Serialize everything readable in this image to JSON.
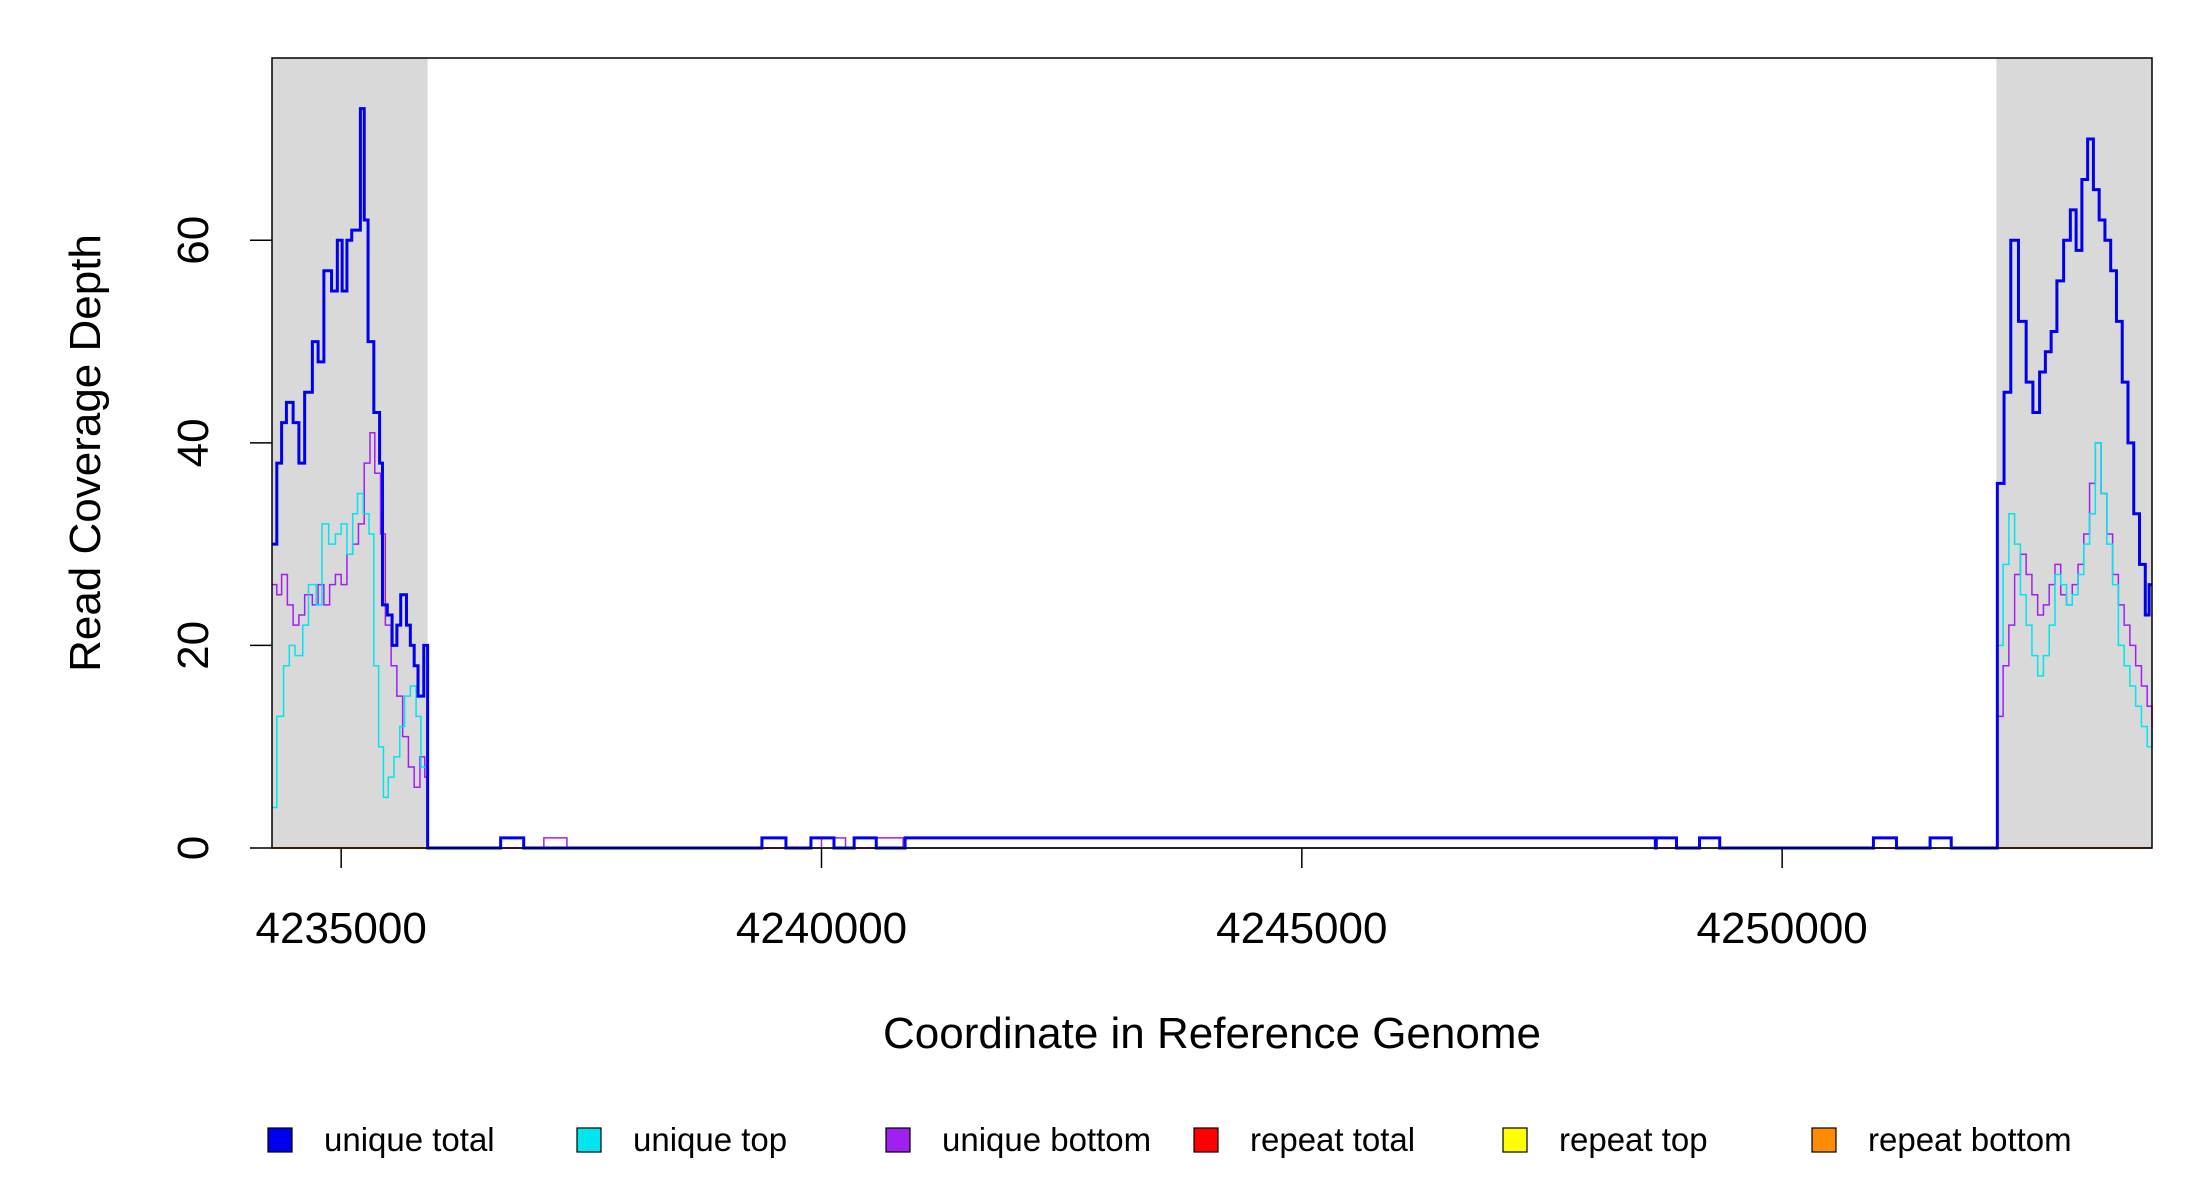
{
  "chart_data": {
    "type": "line",
    "xlabel": "Coordinate in Reference Genome",
    "ylabel": "Read Coverage Depth",
    "xlim": [
      4234280,
      4253850
    ],
    "ylim": [
      0,
      78
    ],
    "x_ticks": [
      4235000,
      4240000,
      4245000,
      4250000
    ],
    "x_tick_labels": [
      "4235000",
      "4240000",
      "4245000",
      "4250000"
    ],
    "y_ticks": [
      0,
      20,
      40,
      60
    ],
    "y_tick_labels": [
      "0",
      "20",
      "40",
      "60"
    ],
    "grid": false,
    "legend_position": "bottom",
    "shaded_regions": [
      {
        "x0": 4234280,
        "x1": 4235900,
        "color": "#d9d9d9"
      },
      {
        "x0": 4252230,
        "x1": 4253850,
        "color": "#d9d9d9"
      }
    ],
    "series": [
      {
        "name": "unique total",
        "color": "#0000ee",
        "width": 3,
        "x": [
          4234280,
          4234330,
          4234380,
          4234430,
          4234500,
          4234560,
          4234620,
          4234700,
          4234760,
          4234820,
          4234900,
          4234960,
          4235010,
          4235060,
          4235110,
          4235160,
          4235200,
          4235240,
          4235280,
          4235340,
          4235400,
          4235430,
          4235480,
          4235530,
          4235580,
          4235620,
          4235680,
          4235720,
          4235760,
          4235800,
          4235860,
          4235900,
          4236650,
          4236660,
          4236880,
          4236900,
          4239370,
          4239380,
          4239620,
          4239630,
          4239880,
          4239890,
          4240120,
          4240130,
          4240330,
          4240340,
          4240560,
          4240570,
          4240860,
          4240870,
          4248680,
          4248690,
          4248880,
          4248900,
          4249130,
          4249140,
          4249330,
          4249350,
          4250940,
          4250950,
          4251180,
          4251190,
          4251530,
          4251540,
          4251750,
          4251760,
          4252230,
          4252240,
          4252310,
          4252380,
          4252460,
          4252540,
          4252610,
          4252680,
          4252740,
          4252800,
          4252860,
          4252930,
          4253000,
          4253060,
          4253120,
          4253180,
          4253240,
          4253300,
          4253360,
          4253420,
          4253480,
          4253540,
          4253600,
          4253660,
          4253720,
          4253780,
          4253820,
          4253850
        ],
        "y": [
          30,
          38,
          42,
          44,
          42,
          38,
          45,
          50,
          48,
          57,
          55,
          60,
          55,
          60,
          61,
          61,
          73,
          62,
          50,
          43,
          38,
          24,
          23,
          20,
          22,
          25,
          22,
          20,
          18,
          15,
          20,
          0,
          0,
          1,
          1,
          0,
          0,
          1,
          1,
          0,
          0,
          1,
          1,
          0,
          0,
          1,
          1,
          0,
          0,
          1,
          0,
          1,
          1,
          0,
          0,
          1,
          1,
          0,
          0,
          1,
          1,
          0,
          0,
          1,
          1,
          0,
          0,
          36,
          45,
          60,
          52,
          46,
          43,
          47,
          49,
          51,
          56,
          60,
          63,
          59,
          66,
          70,
          65,
          62,
          60,
          57,
          52,
          46,
          40,
          33,
          28,
          23,
          26,
          26
        ]
      },
      {
        "name": "unique top",
        "color": "#00e5ee",
        "width": 1.5,
        "x": [
          4234280,
          4234330,
          4234400,
          4234460,
          4234520,
          4234600,
          4234660,
          4234740,
          4234800,
          4234870,
          4234940,
          4235000,
          4235060,
          4235120,
          4235170,
          4235230,
          4235290,
          4235340,
          4235390,
          4235440,
          4235490,
          4235550,
          4235610,
          4235660,
          4235720,
          4235780,
          4235830,
          4235870,
          4235900,
          4236650,
          4236660,
          4236880,
          4236900,
          4239370,
          4239380,
          4239620,
          4239630,
          4240330,
          4240340,
          4240560,
          4240570,
          4248680,
          4248690,
          4248880,
          4248900,
          4250940,
          4250950,
          4251180,
          4251190,
          4252230,
          4252240,
          4252300,
          4252360,
          4252420,
          4252480,
          4252540,
          4252600,
          4252660,
          4252720,
          4252780,
          4252840,
          4252900,
          4252960,
          4253020,
          4253080,
          4253140,
          4253200,
          4253260,
          4253320,
          4253380,
          4253440,
          4253500,
          4253560,
          4253620,
          4253680,
          4253740,
          4253800,
          4253850
        ],
        "y": [
          4,
          13,
          18,
          20,
          19,
          22,
          26,
          24,
          32,
          30,
          31,
          32,
          29,
          33,
          35,
          33,
          31,
          18,
          10,
          5,
          7,
          9,
          12,
          15,
          16,
          13,
          8,
          8,
          0,
          0,
          1,
          1,
          0,
          0,
          1,
          1,
          0,
          0,
          1,
          1,
          0,
          0,
          1,
          1,
          0,
          0,
          1,
          1,
          0,
          0,
          20,
          28,
          33,
          30,
          25,
          22,
          19,
          17,
          19,
          22,
          27,
          26,
          24,
          25,
          27,
          30,
          33,
          40,
          35,
          30,
          26,
          20,
          18,
          16,
          14,
          12,
          10,
          12
        ]
      },
      {
        "name": "unique bottom",
        "color": "#a020f0",
        "width": 1.5,
        "x": [
          4234280,
          4234330,
          4234380,
          4234440,
          4234500,
          4234560,
          4234620,
          4234700,
          4234760,
          4234820,
          4234880,
          4234940,
          4235000,
          4235060,
          4235120,
          4235180,
          4235240,
          4235300,
          4235350,
          4235410,
          4235460,
          4235520,
          4235580,
          4235640,
          4235700,
          4235760,
          4235820,
          4235870,
          4235900,
          4236650,
          4236880,
          4236900,
          4237100,
          4237110,
          4237330,
          4237350,
          4239990,
          4240000,
          4240240,
          4240250,
          4240560,
          4240570,
          4240840,
          4240850,
          4240870,
          4249130,
          4249140,
          4249330,
          4249350,
          4251530,
          4251540,
          4251750,
          4251760,
          4252230,
          4252240,
          4252300,
          4252360,
          4252420,
          4252480,
          4252540,
          4252600,
          4252660,
          4252720,
          4252780,
          4252840,
          4252900,
          4252960,
          4253020,
          4253080,
          4253140,
          4253200,
          4253260,
          4253320,
          4253380,
          4253440,
          4253500,
          4253560,
          4253620,
          4253680,
          4253740,
          4253800,
          4253850
        ],
        "y": [
          26,
          25,
          27,
          24,
          22,
          23,
          25,
          24,
          26,
          24,
          26,
          27,
          26,
          29,
          30,
          32,
          38,
          41,
          37,
          31,
          22,
          18,
          15,
          11,
          8,
          6,
          9,
          7,
          0,
          0,
          0,
          0,
          0,
          1,
          1,
          0,
          0,
          1,
          1,
          0,
          0,
          1,
          1,
          0,
          0,
          0,
          1,
          1,
          0,
          0,
          1,
          1,
          0,
          0,
          13,
          18,
          22,
          27,
          29,
          27,
          25,
          23,
          24,
          26,
          28,
          25,
          24,
          26,
          28,
          31,
          36,
          40,
          35,
          31,
          27,
          24,
          22,
          20,
          18,
          16,
          14,
          12
        ]
      },
      {
        "name": "repeat total",
        "color": "#ff0000",
        "width": 1.5,
        "x": [
          4234280,
          4253850
        ],
        "y": [
          0,
          0
        ]
      },
      {
        "name": "repeat top",
        "color": "#ffff00",
        "width": 1.5,
        "x": [
          4234280,
          4253850
        ],
        "y": [
          0,
          0
        ]
      },
      {
        "name": "repeat bottom",
        "color": "#ff8c00",
        "width": 1.5,
        "x": [
          4234280,
          4253850
        ],
        "y": [
          0,
          0
        ]
      }
    ]
  }
}
